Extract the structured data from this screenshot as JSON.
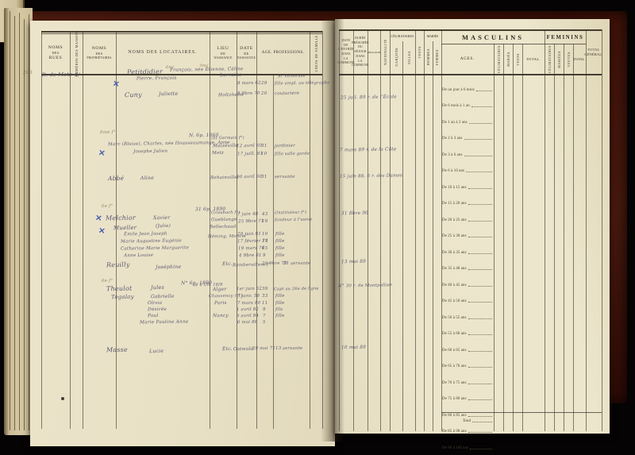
{
  "document": {
    "kind": "census-register-scan",
    "accent_colors": {
      "cover": "#471508",
      "paper": "#ece5cb",
      "ink": "#4e4c68",
      "blue_mark": "#3c55b0"
    }
  },
  "left_page": {
    "headers": {
      "rues": [
        "NOMS",
        "DES",
        "RUES"
      ],
      "numeros": "NUMÉROS DES MAISONS",
      "proprietaires": [
        "NOMS",
        "DES",
        "PROPRIÉTAIRES"
      ],
      "locataires": "NOMS DES LOCATAIRES.",
      "lieu": [
        "LIEU",
        "DE",
        "NAISSANCE"
      ],
      "date": [
        "DATE",
        "DE",
        "NAISSANCE"
      ],
      "age_professions": "AGE. PROFESSIONS.",
      "rot": "CHEFS DE FAMILLE"
    }
  },
  "right_page": {
    "headers": {
      "entree": [
        "DATE",
        "DE",
        "L'ENTRÉE",
        "DANS",
        "LA COMMUNE"
      ],
      "duree": [
        "DURÉE",
        "PRÉSUMÉE",
        "DU SÉJOUR",
        "DANS",
        "LA COMMUNE"
      ],
      "religion": "RELIGION",
      "rot_a": "NATIONALITÉ",
      "celibataires": {
        "label": "CÉLIBATAIRES",
        "subs": [
          "GARÇONS",
          "FILLES"
        ]
      },
      "rot_b": "VEUFS",
      "maries": {
        "label": "MARIÉS",
        "subs": [
          "HOMMES",
          "FEMMES"
        ]
      },
      "masculins": {
        "label": "MASCULINS",
        "ages_label": "AGES.",
        "subs": [
          "CÉLIBATAIRES",
          "MARIÉS",
          "VEUFS"
        ],
        "total": "TOTAL."
      },
      "feminins": {
        "label": "FEMININS",
        "subs": [
          "CÉLIBATAIRES",
          "MARIÉES",
          "VEUVES"
        ],
        "total": "TOTAL."
      },
      "total_general": [
        "TOTAL",
        "GÉNÉRAL."
      ]
    },
    "age_rows": [
      "De un jour à 6 mois",
      "De 6 mois à 1 an",
      "De 1 an à 2 ans",
      "De 2 à 3 ans",
      "De 3 à 6 ans",
      "De 6 à 10 ans",
      "De 10 à 15 ans",
      "De 15 à 20 ans",
      "De 20 à 25 ans",
      "De 25 à 30 ans",
      "De 30 à 35 ans",
      "De 35 à 40 ans",
      "De 40 à 45 ans",
      "De 45 à 50 ans",
      "De 50 à 55 ans",
      "De 55 à 60 ans",
      "De 60 à 65 ans",
      "De 65 à 70 ans",
      "De 70 à 75 ans",
      "De 75 à 80 ans",
      "De 80 à 85 ans",
      "De 85 à 90 ans",
      "De 90 à 100 ans",
      "De 100 à 105 ans"
    ],
    "total_label": "Total"
  },
  "ink": [
    {
      "t": 88,
      "l": 29,
      "x": "263",
      "s": 6,
      "c": "sep"
    },
    {
      "t": 90,
      "l": 53,
      "x": "R. de Metz",
      "s": 6.5
    },
    {
      "t": 90,
      "l": 94,
      "x": "6/",
      "s": 6.5
    },
    {
      "t": 82,
      "l": 209,
      "x": "6m/",
      "s": 5,
      "c": "sep"
    },
    {
      "t": 80,
      "l": 252,
      "x": "9m/",
      "s": 5,
      "c": "sep"
    },
    {
      "t": 86,
      "l": 160,
      "x": "Petitdidier",
      "s": 8
    },
    {
      "t": 85,
      "l": 214,
      "x": "François, née Étienne, Céline",
      "s": 5.8
    },
    {
      "t": 96,
      "l": 172,
      "x": "Pierre, François",
      "s": 5.8
    },
    {
      "t": 91,
      "l": 277,
      "x": "Lorraine",
      "s": 6
    },
    {
      "t": 93,
      "l": 350,
      "x": "Sr Vendeuse",
      "s": 5.2
    },
    {
      "t": 102,
      "l": 299,
      "x": "8 mars 62",
      "s": 5.5
    },
    {
      "t": 102,
      "l": 329,
      "x": "29",
      "s": 5.5
    },
    {
      "t": 102,
      "l": 346,
      "x": "fille empl. au télégraphe",
      "s": 5.2
    },
    {
      "t": 101,
      "l": 142,
      "x": "✕",
      "s": 10,
      "c": "xm"
    },
    {
      "t": 115,
      "l": 157,
      "x": "Cuny",
      "s": 8
    },
    {
      "t": 115,
      "l": 200,
      "x": "Juliette",
      "s": 6.2
    },
    {
      "t": 117,
      "l": 275,
      "x": "Holtzheim",
      "s": 5.8
    },
    {
      "t": 115,
      "l": 299,
      "x": "8 9bre 70",
      "s": 5.5
    },
    {
      "t": 115,
      "l": 329,
      "x": "20",
      "s": 5.5
    },
    {
      "t": 115,
      "l": 346,
      "x": "couturière",
      "s": 5.5
    },
    {
      "t": 120,
      "l": 429,
      "x": "25 juil. 89 r. de l'École",
      "s": 5.8
    },
    {
      "t": 164,
      "l": 126,
      "x": "6me f°",
      "s": 5.5,
      "c": "sep"
    },
    {
      "t": 167,
      "l": 238,
      "x": "N. 6p. 1860",
      "s": 6
    },
    {
      "t": 178,
      "l": 136,
      "x": "Marc (Blaise), Charles, née Housseaumange, Anne",
      "s": 5.6
    },
    {
      "t": 188,
      "l": 168,
      "x": "Josephe Julien",
      "s": 5.6
    },
    {
      "t": 171,
      "l": 266,
      "x": "(St Germain f°)",
      "s": 5
    },
    {
      "t": 181,
      "l": 268,
      "x": "Malzéville",
      "s": 5.8
    },
    {
      "t": 190,
      "l": 267,
      "x": "Metz",
      "s": 5.6
    },
    {
      "t": 181,
      "l": 298,
      "x": "12 avril 60",
      "s": 5.5
    },
    {
      "t": 191,
      "l": 299,
      "x": "17 juill. 81",
      "s": 5.5
    },
    {
      "t": 181,
      "l": 329,
      "x": "31",
      "s": 5.5
    },
    {
      "t": 191,
      "l": 329,
      "x": "10",
      "s": 5.5
    },
    {
      "t": 181,
      "l": 346,
      "x": "jardinier",
      "s": 5.5
    },
    {
      "t": 191,
      "l": 346,
      "x": "fille salle garde",
      "s": 5.2
    },
    {
      "t": 188,
      "l": 124,
      "x": "✕",
      "s": 10,
      "c": "xm"
    },
    {
      "t": 186,
      "l": 428,
      "x": "7 mars 89 r. de la Côte",
      "s": 5.8
    },
    {
      "t": 220,
      "l": 136,
      "x": "Abbé",
      "s": 7.5
    },
    {
      "t": 221,
      "l": 177,
      "x": "Aline",
      "s": 6.2
    },
    {
      "t": 221,
      "l": 265,
      "x": "Rehainviller",
      "s": 5.6
    },
    {
      "t": 220,
      "l": 298,
      "x": "10 avril 60",
      "s": 5.5
    },
    {
      "t": 220,
      "l": 329,
      "x": "31",
      "s": 5.5
    },
    {
      "t": 220,
      "l": 346,
      "x": "servante",
      "s": 5.5
    },
    {
      "t": 219,
      "l": 428,
      "x": "15 juin 88, 6 r. des Dames",
      "s": 5.6
    },
    {
      "t": 257,
      "l": 128,
      "x": "6e f°",
      "s": 5.5,
      "c": "sep"
    },
    {
      "t": 260,
      "l": 246,
      "x": "31 6p. 1890",
      "s": 6
    },
    {
      "t": 270,
      "l": 133,
      "x": "Melchior",
      "s": 8
    },
    {
      "t": 271,
      "l": 193,
      "x": "Xavier",
      "s": 6.2
    },
    {
      "t": 283,
      "l": 143,
      "x": "Mueller",
      "s": 7
    },
    {
      "t": 282,
      "l": 196,
      "x": "(Julie)",
      "s": 5.8
    },
    {
      "t": 292,
      "l": 156,
      "x": "Émile Jean Joseph",
      "s": 5.6
    },
    {
      "t": 301,
      "l": 152,
      "x": "Marie Augustine Eugénie",
      "s": 5.6
    },
    {
      "t": 310,
      "l": 152,
      "x": "Catherine Marie Marguerite",
      "s": 5.6
    },
    {
      "t": 319,
      "l": 156,
      "x": "Anne Louise",
      "s": 5.6
    },
    {
      "t": 265,
      "l": 264,
      "x": "(Griesbach f°)",
      "s": 5
    },
    {
      "t": 274,
      "l": 266,
      "x": "Gueblange",
      "s": 5.6
    },
    {
      "t": 283,
      "l": 264,
      "x": "Bellechaud",
      "s": 5.6
    },
    {
      "t": 295,
      "l": 262,
      "x": "Héming, Moncel",
      "s": 5.4
    },
    {
      "t": 267,
      "l": 299,
      "x": "7 juin 48",
      "s": 5.5
    },
    {
      "t": 276,
      "l": 300,
      "x": "25 9bre 71",
      "s": 5.5
    },
    {
      "t": 292,
      "l": 299,
      "x": "20 juin 81",
      "s": 5.5
    },
    {
      "t": 301,
      "l": 299,
      "x": "17 février 74",
      "s": 5.5
    },
    {
      "t": 310,
      "l": 300,
      "x": "19 mars 76",
      "s": 5.5
    },
    {
      "t": 319,
      "l": 301,
      "x": "4 9bre 81",
      "s": 5.5
    },
    {
      "t": 267,
      "l": 330,
      "x": "43",
      "s": 5.5
    },
    {
      "t": 276,
      "l": 330,
      "x": "19",
      "s": 5.5
    },
    {
      "t": 292,
      "l": 330,
      "x": "10",
      "s": 5.5
    },
    {
      "t": 301,
      "l": 330,
      "x": "17",
      "s": 5.5
    },
    {
      "t": 310,
      "l": 330,
      "x": "15",
      "s": 5.5
    },
    {
      "t": 319,
      "l": 331,
      "x": "9",
      "s": 5.5
    },
    {
      "t": 265,
      "l": 346,
      "x": "(Instituteur f°)",
      "s": 5
    },
    {
      "t": 274,
      "l": 346,
      "x": "fondeur à l'usine",
      "s": 5.2
    },
    {
      "t": 292,
      "l": 347,
      "x": "fille",
      "s": 5.5
    },
    {
      "t": 301,
      "l": 347,
      "x": "fille",
      "s": 5.5
    },
    {
      "t": 310,
      "l": 347,
      "x": "fille",
      "s": 5.5
    },
    {
      "t": 319,
      "l": 347,
      "x": "fille",
      "s": 5.5
    },
    {
      "t": 270,
      "l": 120,
      "x": "✕",
      "s": 10,
      "c": "xm"
    },
    {
      "t": 286,
      "l": 124,
      "x": "✕",
      "s": 10,
      "c": "xm"
    },
    {
      "t": 266,
      "l": 430,
      "x": "31 8bre 90",
      "s": 5.8
    },
    {
      "t": 329,
      "l": 134,
      "x": "Reuilly",
      "s": 8
    },
    {
      "t": 333,
      "l": 196,
      "x": "Joséphine",
      "s": 6.2
    },
    {
      "t": 329,
      "l": 280,
      "x": "Etc.",
      "s": 6
    },
    {
      "t": 331,
      "l": 293,
      "x": "Rambervillers f°",
      "s": 5.4
    },
    {
      "t": 329,
      "l": 330,
      "x": "28 9bre 79",
      "s": 5.4
    },
    {
      "t": 329,
      "l": 357,
      "x": "21",
      "s": 5.5
    },
    {
      "t": 329,
      "l": 366,
      "x": "servante",
      "s": 5.4
    },
    {
      "t": 327,
      "l": 430,
      "x": "13 mai 89",
      "s": 5.8
    },
    {
      "t": 351,
      "l": 128,
      "x": "6e f°",
      "s": 5.5,
      "c": "sep"
    },
    {
      "t": 353,
      "l": 228,
      "x": "N° 6p. 1890",
      "s": 6
    },
    {
      "t": 359,
      "l": 134,
      "x": "Theulot",
      "s": 8
    },
    {
      "t": 358,
      "l": 190,
      "x": "Jules",
      "s": 6.5
    },
    {
      "t": 356,
      "l": 243,
      "x": "né à Ch. 18/9",
      "s": 5.2
    },
    {
      "t": 370,
      "l": 140,
      "x": "Togalay",
      "s": 7
    },
    {
      "t": 370,
      "l": 190,
      "x": "Gabrielle",
      "s": 6
    },
    {
      "t": 379,
      "l": 186,
      "x": "Olivia",
      "s": 5.8
    },
    {
      "t": 387,
      "l": 186,
      "x": "Désirée",
      "s": 5.8
    },
    {
      "t": 395,
      "l": 186,
      "x": "Paul",
      "s": 5.8
    },
    {
      "t": 403,
      "l": 176,
      "x": "Marie Pauline Anne",
      "s": 5.8
    },
    {
      "t": 361,
      "l": 268,
      "x": "Alger",
      "s": 6
    },
    {
      "t": 370,
      "l": 263,
      "x": "Chauvency (r°)",
      "s": 5.2
    },
    {
      "t": 379,
      "l": 270,
      "x": "Paris",
      "s": 5.8
    },
    {
      "t": 395,
      "l": 268,
      "x": "Nancy",
      "s": 5.8
    },
    {
      "t": 361,
      "l": 298,
      "x": "1er juin 52",
      "s": 5.4
    },
    {
      "t": 370,
      "l": 299,
      "x": "5 janv. 58",
      "s": 5.4
    },
    {
      "t": 379,
      "l": 299,
      "x": "7 mars 80",
      "s": 5.4
    },
    {
      "t": 387,
      "l": 298,
      "x": "1 avril 82",
      "s": 5.4
    },
    {
      "t": 395,
      "l": 298,
      "x": "9 avril 84",
      "s": 5.4
    },
    {
      "t": 403,
      "l": 299,
      "x": "6 mai 86",
      "s": 5.4
    },
    {
      "t": 361,
      "l": 330,
      "x": "39",
      "s": 5.5
    },
    {
      "t": 370,
      "l": 330,
      "x": "33",
      "s": 5.5
    },
    {
      "t": 379,
      "l": 330,
      "x": "11",
      "s": 5.5
    },
    {
      "t": 387,
      "l": 331,
      "x": "9",
      "s": 5.5
    },
    {
      "t": 395,
      "l": 331,
      "x": "7",
      "s": 5.5
    },
    {
      "t": 403,
      "l": 331,
      "x": "5",
      "s": 5.5
    },
    {
      "t": 361,
      "l": 345,
      "x": "Capt au 26e de ligne",
      "s": 5
    },
    {
      "t": 370,
      "l": 347,
      "x": "fille",
      "s": 5.5
    },
    {
      "t": 379,
      "l": 347,
      "x": "fille",
      "s": 5.5
    },
    {
      "t": 387,
      "l": 347,
      "x": "fils",
      "s": 5.5
    },
    {
      "t": 395,
      "l": 347,
      "x": "fille",
      "s": 5.5
    },
    {
      "t": 357,
      "l": 426,
      "x": "N° 30 r. de Montpellier",
      "s": 5.4
    },
    {
      "t": 436,
      "l": 134,
      "x": "Masse",
      "s": 8
    },
    {
      "t": 439,
      "l": 188,
      "x": "Lucie",
      "s": 6.2
    },
    {
      "t": 436,
      "l": 280,
      "x": "Etc.",
      "s": 6
    },
    {
      "t": 437,
      "l": 294,
      "x": "Ostwald",
      "s": 5.8
    },
    {
      "t": 436,
      "l": 318,
      "x": "29 mai 71",
      "s": 5.4
    },
    {
      "t": 436,
      "l": 347,
      "x": "13",
      "s": 5.5
    },
    {
      "t": 436,
      "l": 356,
      "x": "servante",
      "s": 5.4
    },
    {
      "t": 435,
      "l": 430,
      "x": "10 mai 89",
      "s": 5.8
    }
  ]
}
